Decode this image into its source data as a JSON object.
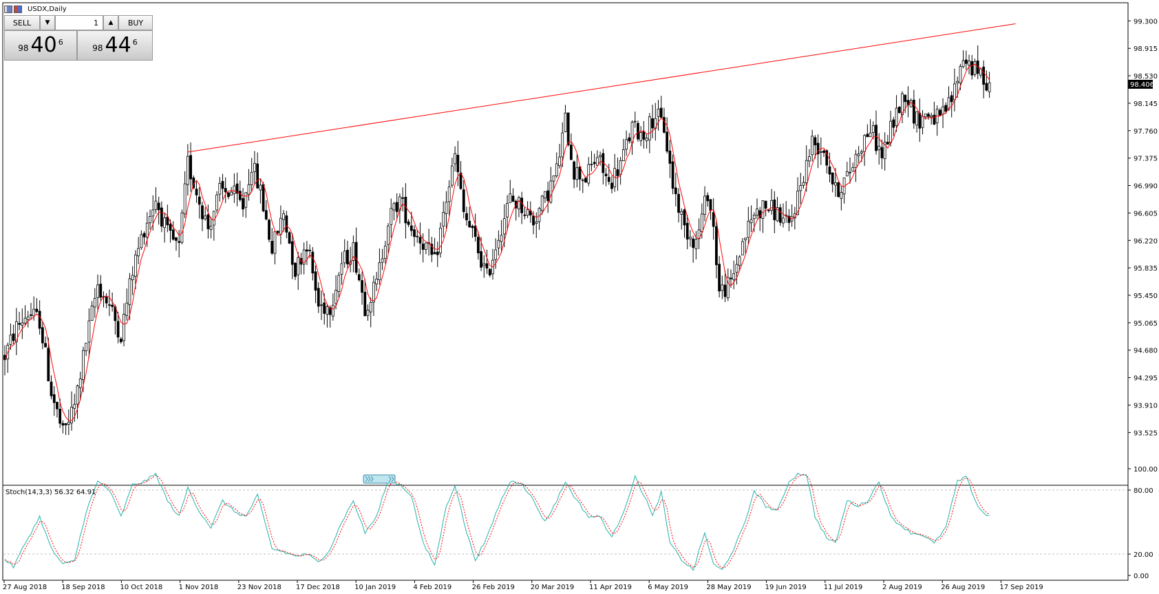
{
  "window": {
    "title": "USDX,Daily"
  },
  "trade_panel": {
    "sell_label": "SELL",
    "buy_label": "BUY",
    "lot_value": "1",
    "sell_price": {
      "prefix": "98",
      "big": "40",
      "sup": "6"
    },
    "buy_price": {
      "prefix": "98",
      "big": "44",
      "sup": "6"
    }
  },
  "colors": {
    "candle": "#000000",
    "ma_line": "#ff0000",
    "trendline": "#ff0000",
    "stoch_main": "#20b2aa",
    "stoch_signal": "#ff0000",
    "price_tag_bg": "#000000"
  },
  "chart_data": [
    {
      "type": "candlestick",
      "symbol": "USDX",
      "timeframe": "Daily",
      "ylim": [
        93.2,
        99.4
      ],
      "y_ticks": [
        "99.300",
        "98.915",
        "98.530",
        "98.145",
        "97.760",
        "97.375",
        "96.990",
        "96.605",
        "96.220",
        "95.835",
        "95.450",
        "95.065",
        "94.680",
        "94.295",
        "93.910",
        "93.525"
      ],
      "x_tick_labels": [
        "27 Aug 2018",
        "18 Sep 2018",
        "10 Oct 2018",
        "1 Nov 2018",
        "23 Nov 2018",
        "17 Dec 2018",
        "10 Jan 2019",
        "4 Feb 2019",
        "26 Feb 2019",
        "20 Mar 2019",
        "11 Apr 2019",
        "6 May 2019",
        "28 May 2019",
        "19 Jun 2019",
        "11 Jul 2019",
        "2 Aug 2019",
        "26 Aug 2019",
        "17 Sep 2019"
      ],
      "current_price": "98.406",
      "anchors": [
        [
          0,
          94.6
        ],
        [
          4,
          95.0
        ],
        [
          8,
          95.2
        ],
        [
          12,
          95.1
        ],
        [
          16,
          94.1
        ],
        [
          20,
          93.5
        ],
        [
          24,
          93.9
        ],
        [
          28,
          94.8
        ],
        [
          32,
          95.6
        ],
        [
          36,
          95.3
        ],
        [
          40,
          94.9
        ],
        [
          44,
          95.8
        ],
        [
          48,
          96.4
        ],
        [
          52,
          96.8
        ],
        [
          56,
          96.3
        ],
        [
          60,
          96.1
        ],
        [
          63,
          97.3
        ],
        [
          66,
          96.9
        ],
        [
          70,
          96.4
        ],
        [
          74,
          96.9
        ],
        [
          78,
          96.9
        ],
        [
          82,
          96.7
        ],
        [
          85,
          97.3
        ],
        [
          88,
          96.9
        ],
        [
          92,
          96.1
        ],
        [
          96,
          96.6
        ],
        [
          100,
          95.8
        ],
        [
          104,
          96.2
        ],
        [
          108,
          95.3
        ],
        [
          112,
          95.3
        ],
        [
          116,
          95.9
        ],
        [
          120,
          96.1
        ],
        [
          124,
          95.3
        ],
        [
          128,
          95.6
        ],
        [
          132,
          96.5
        ],
        [
          136,
          96.8
        ],
        [
          140,
          96.4
        ],
        [
          144,
          96.2
        ],
        [
          148,
          95.9
        ],
        [
          152,
          96.8
        ],
        [
          155,
          97.4
        ],
        [
          158,
          96.6
        ],
        [
          162,
          96.2
        ],
        [
          166,
          95.7
        ],
        [
          170,
          96.3
        ],
        [
          174,
          96.8
        ],
        [
          178,
          96.7
        ],
        [
          182,
          96.5
        ],
        [
          186,
          96.8
        ],
        [
          190,
          97.2
        ],
        [
          193,
          97.9
        ],
        [
          196,
          97.2
        ],
        [
          200,
          97.1
        ],
        [
          204,
          97.4
        ],
        [
          208,
          97.0
        ],
        [
          212,
          97.3
        ],
        [
          216,
          97.8
        ],
        [
          220,
          97.7
        ],
        [
          224,
          98.0
        ],
        [
          227,
          97.8
        ],
        [
          230,
          97.0
        ],
        [
          234,
          96.4
        ],
        [
          238,
          96.2
        ],
        [
          242,
          96.9
        ],
        [
          244,
          96.4
        ],
        [
          246,
          95.5
        ],
        [
          250,
          95.6
        ],
        [
          254,
          96.2
        ],
        [
          258,
          96.6
        ],
        [
          262,
          96.7
        ],
        [
          266,
          96.6
        ],
        [
          270,
          96.4
        ],
        [
          274,
          97.0
        ],
        [
          278,
          97.6
        ],
        [
          282,
          97.5
        ],
        [
          286,
          96.9
        ],
        [
          290,
          97.1
        ],
        [
          294,
          97.5
        ],
        [
          298,
          97.8
        ],
        [
          302,
          97.4
        ],
        [
          306,
          97.9
        ],
        [
          310,
          98.3
        ],
        [
          314,
          97.9
        ],
        [
          318,
          98.0
        ],
        [
          322,
          97.9
        ],
        [
          326,
          98.2
        ],
        [
          330,
          98.8
        ],
        [
          334,
          98.6
        ],
        [
          337,
          98.5
        ],
        [
          339,
          98.4
        ]
      ],
      "trendline": [
        [
          63,
          97.46
        ],
        [
          348,
          99.26
        ]
      ],
      "stoch_ylim": [
        0,
        100
      ],
      "stoch_ticks": [
        "100.00",
        "80.00",
        "20.00",
        "0.00"
      ],
      "stoch_levels": [
        20,
        80
      ],
      "stoch_label": "Stoch(14,3,3) 56.32 64.91",
      "stoch_anchors": [
        [
          0,
          15
        ],
        [
          3,
          8
        ],
        [
          7,
          30
        ],
        [
          12,
          55
        ],
        [
          16,
          25
        ],
        [
          20,
          10
        ],
        [
          24,
          14
        ],
        [
          28,
          60
        ],
        [
          32,
          88
        ],
        [
          36,
          80
        ],
        [
          40,
          55
        ],
        [
          44,
          85
        ],
        [
          48,
          88
        ],
        [
          52,
          95
        ],
        [
          56,
          70
        ],
        [
          60,
          55
        ],
        [
          63,
          82
        ],
        [
          67,
          60
        ],
        [
          71,
          45
        ],
        [
          75,
          70
        ],
        [
          79,
          60
        ],
        [
          83,
          55
        ],
        [
          87,
          75
        ],
        [
          92,
          25
        ],
        [
          96,
          22
        ],
        [
          100,
          18
        ],
        [
          104,
          20
        ],
        [
          108,
          12
        ],
        [
          112,
          25
        ],
        [
          116,
          50
        ],
        [
          120,
          70
        ],
        [
          124,
          40
        ],
        [
          128,
          55
        ],
        [
          132,
          90
        ],
        [
          136,
          85
        ],
        [
          140,
          75
        ],
        [
          144,
          30
        ],
        [
          148,
          10
        ],
        [
          152,
          65
        ],
        [
          155,
          85
        ],
        [
          159,
          40
        ],
        [
          162,
          15
        ],
        [
          166,
          35
        ],
        [
          170,
          65
        ],
        [
          174,
          88
        ],
        [
          178,
          87
        ],
        [
          182,
          70
        ],
        [
          186,
          50
        ],
        [
          190,
          70
        ],
        [
          193,
          88
        ],
        [
          197,
          70
        ],
        [
          201,
          55
        ],
        [
          205,
          55
        ],
        [
          209,
          35
        ],
        [
          213,
          60
        ],
        [
          217,
          92
        ],
        [
          221,
          70
        ],
        [
          223,
          55
        ],
        [
          226,
          78
        ],
        [
          229,
          30
        ],
        [
          233,
          15
        ],
        [
          237,
          5
        ],
        [
          241,
          40
        ],
        [
          244,
          10
        ],
        [
          247,
          5
        ],
        [
          251,
          25
        ],
        [
          255,
          50
        ],
        [
          258,
          80
        ],
        [
          262,
          65
        ],
        [
          266,
          60
        ],
        [
          270,
          88
        ],
        [
          273,
          95
        ],
        [
          276,
          95
        ],
        [
          279,
          55
        ],
        [
          283,
          35
        ],
        [
          286,
          30
        ],
        [
          290,
          70
        ],
        [
          294,
          65
        ],
        [
          297,
          70
        ],
        [
          301,
          88
        ],
        [
          305,
          55
        ],
        [
          308,
          48
        ],
        [
          312,
          40
        ],
        [
          316,
          38
        ],
        [
          320,
          30
        ],
        [
          324,
          45
        ],
        [
          328,
          88
        ],
        [
          331,
          92
        ],
        [
          335,
          65
        ],
        [
          338,
          56
        ]
      ]
    }
  ]
}
